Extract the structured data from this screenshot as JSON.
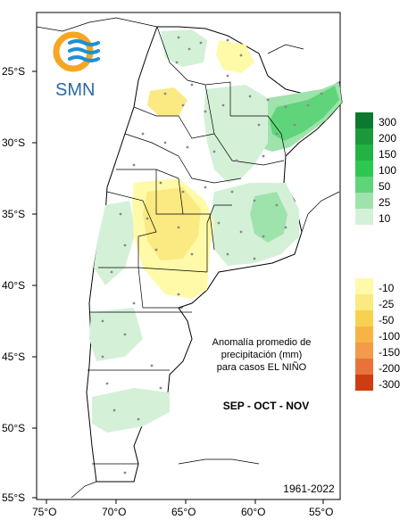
{
  "logo": {
    "text": "SMN",
    "colors": {
      "sun": "#f5a623",
      "waves": "#1f8fd6",
      "text": "#2a6aa6"
    }
  },
  "axes": {
    "lat_ticks": [
      "25°S",
      "30°S",
      "35°S",
      "40°S",
      "45°S",
      "50°S",
      "55°S"
    ],
    "lon_ticks": [
      "75°O",
      "70°O",
      "65°O",
      "60°O",
      "55°O"
    ]
  },
  "legend": {
    "positive": [
      {
        "label": "300",
        "color": "#0b7a2e"
      },
      {
        "label": "200",
        "color": "#1a9a3a"
      },
      {
        "label": "150",
        "color": "#23b343"
      },
      {
        "label": "100",
        "color": "#2cc84f"
      },
      {
        "label": "50",
        "color": "#5fd47a"
      },
      {
        "label": "25",
        "color": "#9fe3ac"
      },
      {
        "label": "10",
        "color": "#d4f1d8"
      }
    ],
    "negative": [
      {
        "label": "-10",
        "color": "#fffaa8"
      },
      {
        "label": "-25",
        "color": "#fbe982"
      },
      {
        "label": "-50",
        "color": "#f8d24f"
      },
      {
        "label": "-100",
        "color": "#f7b446"
      },
      {
        "label": "-150",
        "color": "#f39a4b"
      },
      {
        "label": "-200",
        "color": "#e8733a"
      },
      {
        "label": "-300",
        "color": "#cf3c12"
      }
    ]
  },
  "caption": {
    "line1": "Anomalía promedio de",
    "line2": "precipitación (mm)",
    "line3": "para casos EL NIÑO"
  },
  "season": "SEP - OCT - NOV",
  "period": "1961-2022",
  "colors": {
    "land": "#ffffff",
    "frame": "#000000",
    "station": "#8a8a8a"
  }
}
